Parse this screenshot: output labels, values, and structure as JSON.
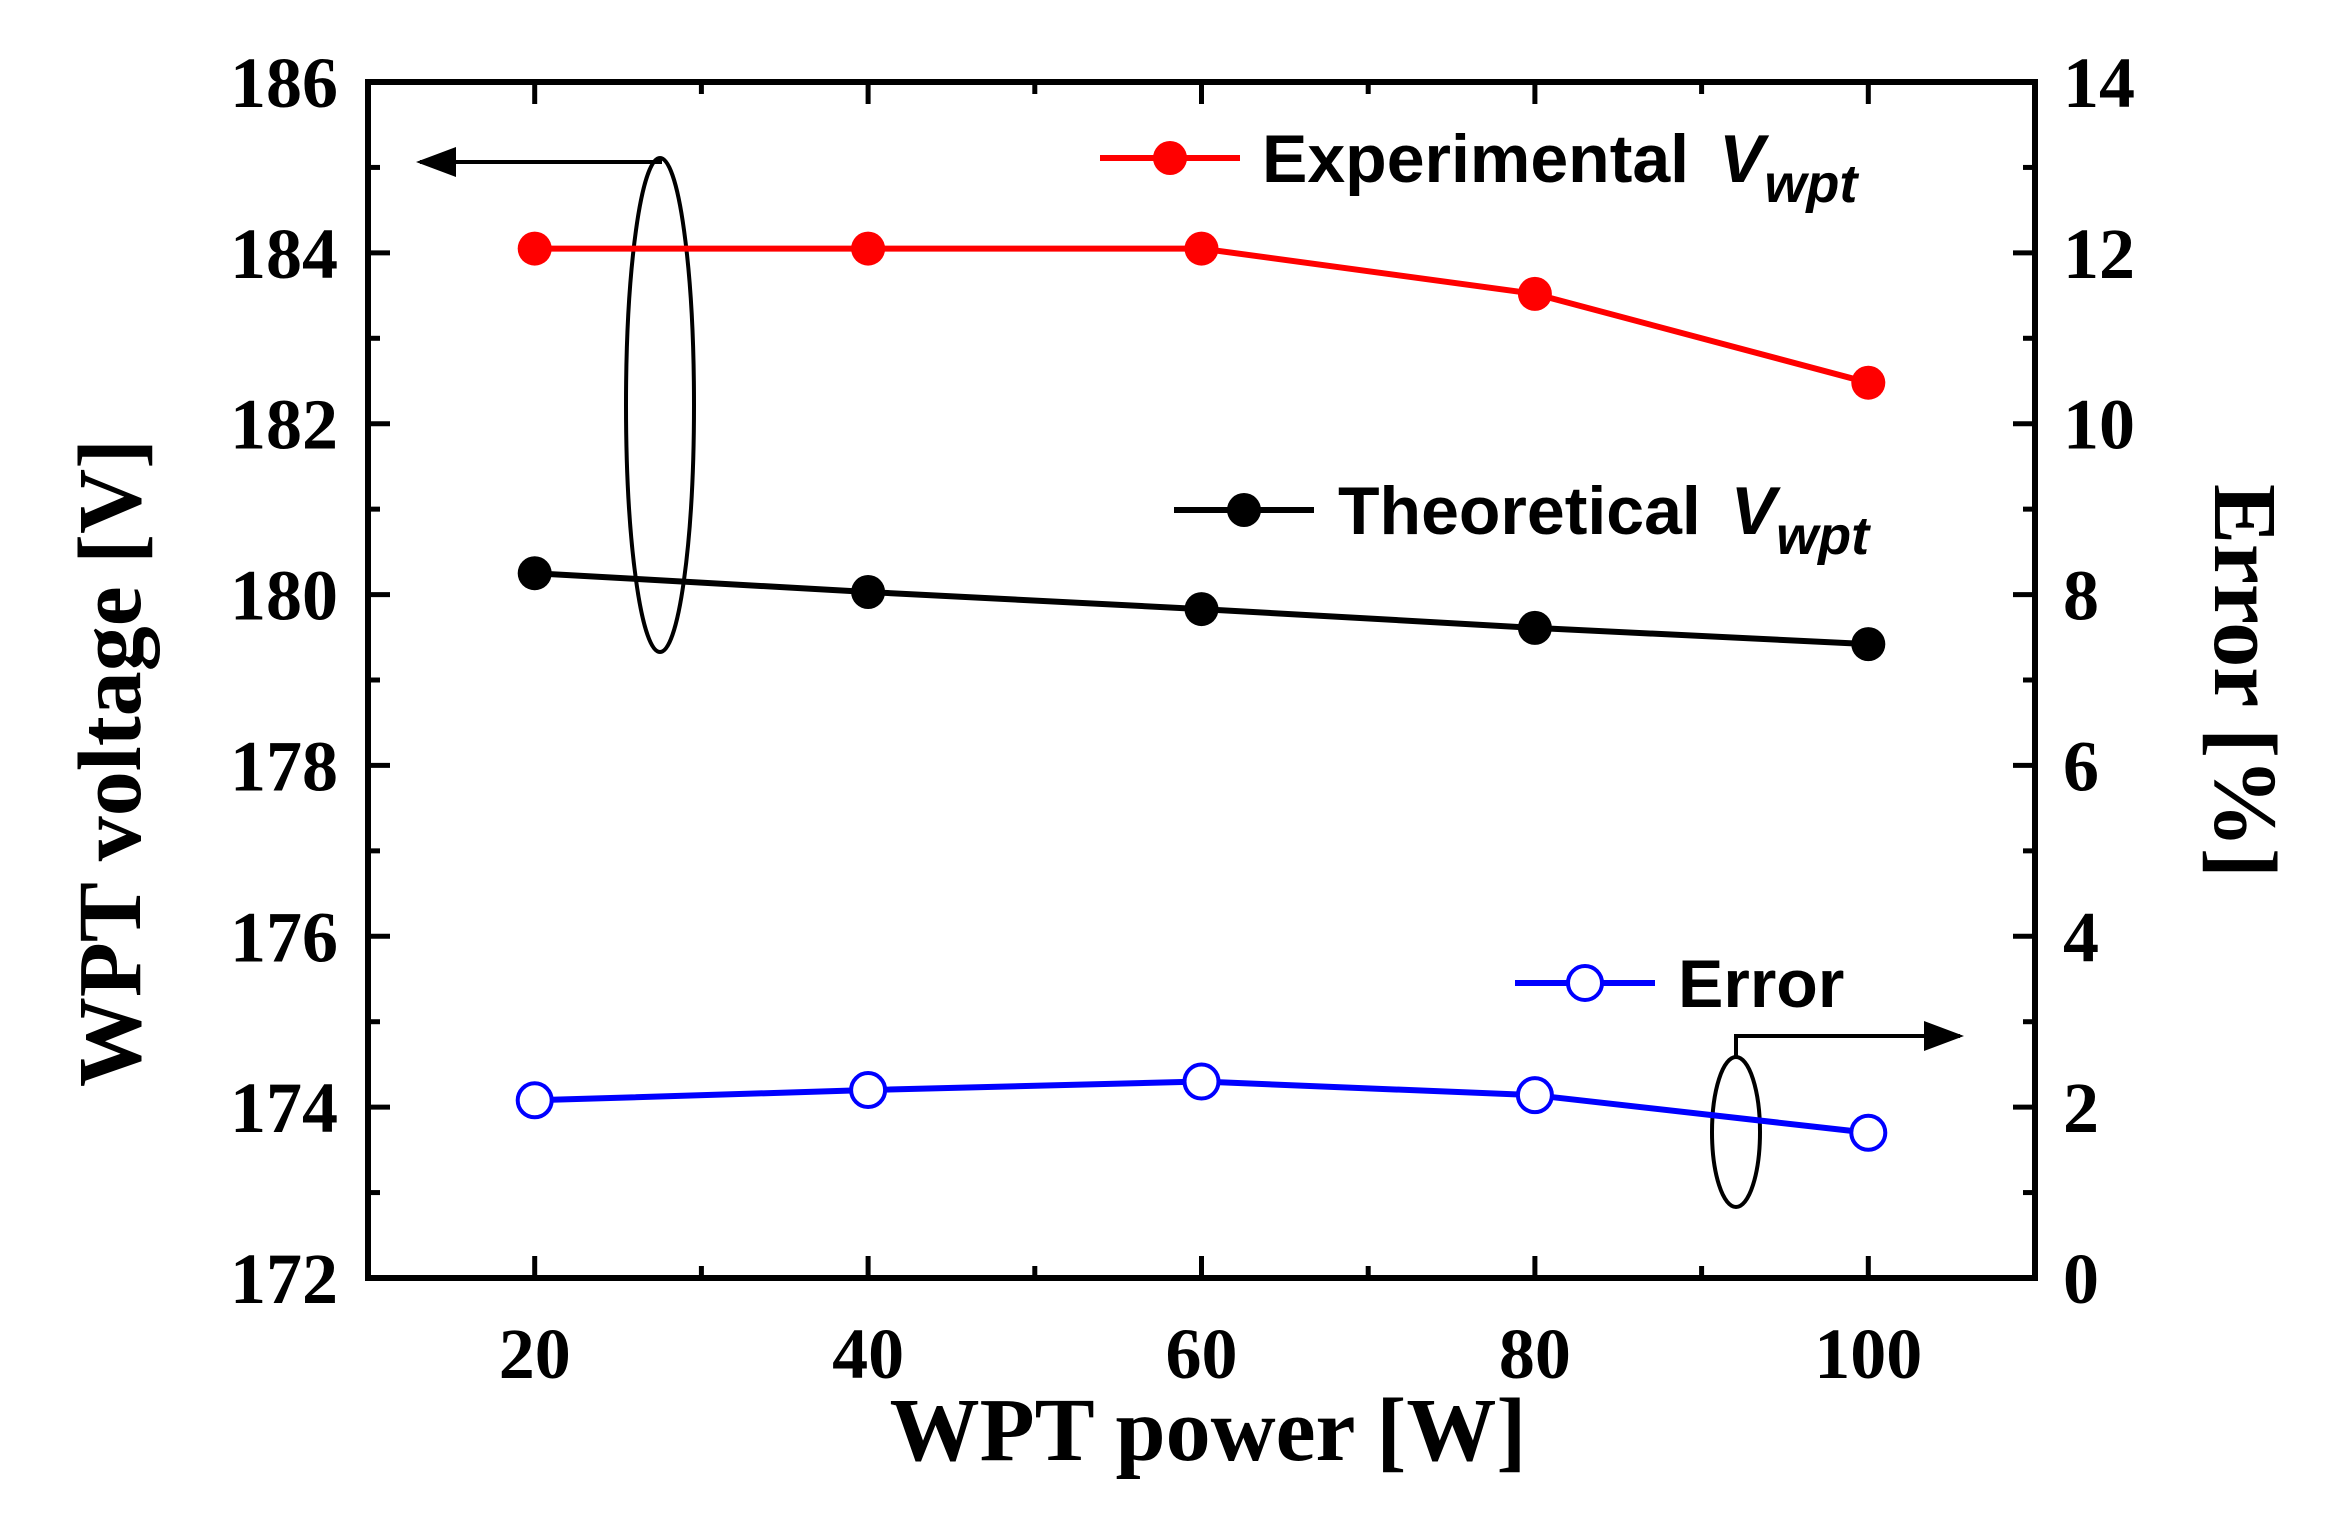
{
  "chart_data": {
    "type": "line",
    "x": [
      20,
      40,
      60,
      80,
      100
    ],
    "xlabel": "WPT power [W]",
    "ylabel": "WPT voltage [V]",
    "y2label": "Error [%]",
    "xlim": [
      10,
      110
    ],
    "ylim": [
      172,
      186
    ],
    "y2lim": [
      0,
      14
    ],
    "x_ticks": [
      "20",
      "40",
      "60",
      "80",
      "100"
    ],
    "y_ticks": [
      "172",
      "174",
      "176",
      "178",
      "180",
      "182",
      "184",
      "186"
    ],
    "y2_ticks": [
      "0",
      "2",
      "4",
      "6",
      "8",
      "10",
      "12",
      "14"
    ],
    "grid": false,
    "legend_placement": "right, stacked beside each series",
    "series": [
      {
        "name": "Experimental V_wpt",
        "legend_main": "Experimental",
        "legend_sub": "V",
        "legend_subscript": "wpt",
        "axis": "left",
        "color": "#ff0000",
        "marker": "filled-circle",
        "values": [
          184.05,
          184.05,
          184.05,
          183.52,
          182.48
        ]
      },
      {
        "name": "Theoretical V_wpt",
        "legend_main": "Theoretical",
        "legend_sub": "V",
        "legend_subscript": "wpt",
        "axis": "left",
        "color": "#000000",
        "marker": "filled-circle",
        "values": [
          180.25,
          180.03,
          179.83,
          179.61,
          179.42
        ]
      },
      {
        "name": "Error",
        "legend_main": "Error",
        "legend_sub": "",
        "legend_subscript": "",
        "axis": "right",
        "color": "#0000ff",
        "marker": "open-circle",
        "values": [
          2.08,
          2.2,
          2.3,
          2.14,
          1.7
        ]
      }
    ]
  }
}
